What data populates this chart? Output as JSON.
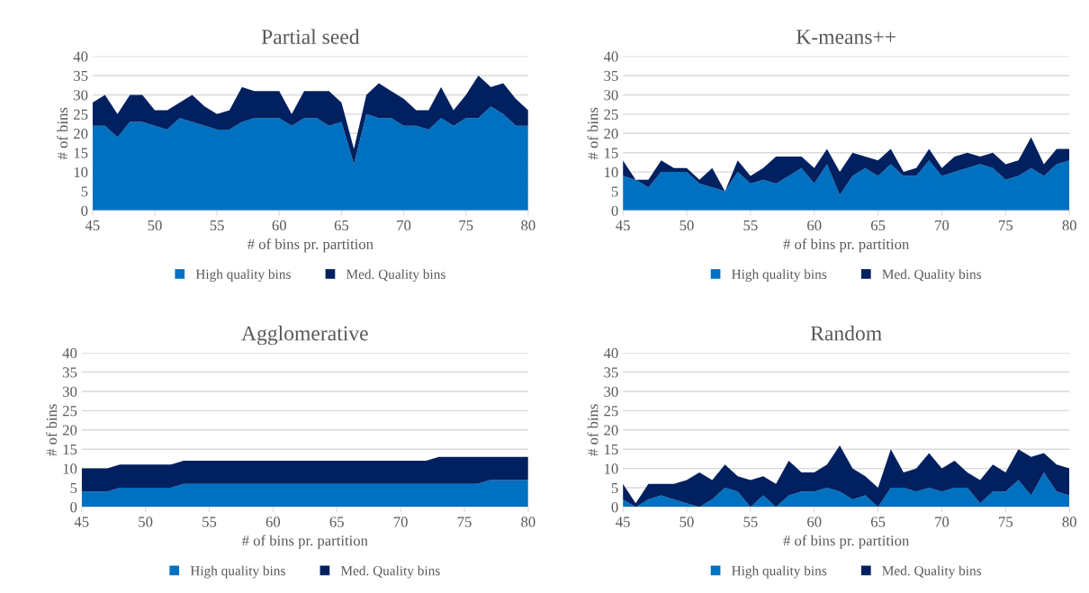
{
  "chart_data": [
    {
      "type": "area",
      "stacked": true,
      "title": "Partial seed",
      "xlabel": "# of bins pr. partition",
      "ylabel": "# of bins",
      "x": [
        45,
        46,
        47,
        48,
        49,
        50,
        51,
        52,
        53,
        54,
        55,
        56,
        57,
        58,
        59,
        60,
        61,
        62,
        63,
        64,
        65,
        66,
        67,
        68,
        69,
        70,
        71,
        72,
        73,
        74,
        75,
        76,
        77,
        78,
        79,
        80
      ],
      "xlim": [
        45,
        80
      ],
      "xticks": [
        45,
        50,
        55,
        60,
        65,
        70,
        75,
        80
      ],
      "ylim": [
        0,
        40
      ],
      "yticks": [
        0,
        5,
        10,
        15,
        20,
        25,
        30,
        35,
        40
      ],
      "grid": "y",
      "legend": "bottom",
      "series": [
        {
          "name": "High quality bins",
          "color": "#0070c0",
          "values": [
            22,
            22,
            19,
            23,
            23,
            22,
            21,
            24,
            23,
            22,
            21,
            21,
            23,
            24,
            24,
            24,
            22,
            24,
            24,
            22,
            23,
            12,
            25,
            24,
            24,
            22,
            22,
            21,
            24,
            22,
            24,
            24,
            27,
            25,
            22,
            22
          ]
        },
        {
          "name": "Med. Quality bins",
          "color": "#002060",
          "values": [
            6,
            8,
            6,
            7,
            7,
            4,
            5,
            4,
            7,
            5,
            4,
            5,
            9,
            7,
            7,
            7,
            3,
            7,
            7,
            9,
            5,
            4,
            5,
            9,
            7,
            7,
            4,
            5,
            8,
            4,
            6,
            11,
            5,
            8,
            7,
            4
          ]
        }
      ]
    },
    {
      "type": "area",
      "stacked": true,
      "title": "K-means++",
      "xlabel": "# of bins pr. partition",
      "ylabel": "# of bins",
      "x": [
        45,
        46,
        47,
        48,
        49,
        50,
        51,
        52,
        53,
        54,
        55,
        56,
        57,
        58,
        59,
        60,
        61,
        62,
        63,
        64,
        65,
        66,
        67,
        68,
        69,
        70,
        71,
        72,
        73,
        74,
        75,
        76,
        77,
        78,
        79,
        80
      ],
      "xlim": [
        45,
        80
      ],
      "xticks": [
        45,
        50,
        55,
        60,
        65,
        70,
        75,
        80
      ],
      "ylim": [
        0,
        40
      ],
      "yticks": [
        0,
        5,
        10,
        15,
        20,
        25,
        30,
        35,
        40
      ],
      "grid": "y",
      "legend": "bottom",
      "series": [
        {
          "name": "High quality bins",
          "color": "#0070c0",
          "values": [
            9,
            8,
            6,
            10,
            10,
            10,
            7,
            6,
            5,
            10,
            7,
            8,
            7,
            9,
            11,
            7,
            12,
            4,
            9,
            11,
            9,
            12,
            9,
            9,
            13,
            9,
            10,
            11,
            12,
            11,
            8,
            9,
            11,
            9,
            12,
            13
          ]
        },
        {
          "name": "Med. Quality bins",
          "color": "#002060",
          "values": [
            4,
            0,
            2,
            3,
            1,
            1,
            1,
            5,
            0,
            3,
            2,
            3,
            7,
            5,
            3,
            4,
            4,
            6,
            6,
            3,
            4,
            4,
            1,
            2,
            3,
            2,
            4,
            4,
            2,
            4,
            4,
            4,
            8,
            3,
            4,
            3
          ]
        }
      ]
    },
    {
      "type": "area",
      "stacked": true,
      "title": "Agglomerative",
      "xlabel": "# of bins pr. partition",
      "ylabel": "# of bins",
      "x": [
        45,
        46,
        47,
        48,
        49,
        50,
        51,
        52,
        53,
        54,
        55,
        56,
        57,
        58,
        59,
        60,
        61,
        62,
        63,
        64,
        65,
        66,
        67,
        68,
        69,
        70,
        71,
        72,
        73,
        74,
        75,
        76,
        77,
        78,
        79,
        80
      ],
      "xlim": [
        45,
        80
      ],
      "xticks": [
        45,
        50,
        55,
        60,
        65,
        70,
        75,
        80
      ],
      "ylim": [
        0,
        40
      ],
      "yticks": [
        0,
        5,
        10,
        15,
        20,
        25,
        30,
        35,
        40
      ],
      "grid": "y",
      "legend": "bottom",
      "series": [
        {
          "name": "High quality bins",
          "color": "#0070c0",
          "values": [
            4,
            4,
            4,
            5,
            5,
            5,
            5,
            5,
            6,
            6,
            6,
            6,
            6,
            6,
            6,
            6,
            6,
            6,
            6,
            6,
            6,
            6,
            6,
            6,
            6,
            6,
            6,
            6,
            6,
            6,
            6,
            6,
            7,
            7,
            7,
            7
          ]
        },
        {
          "name": "Med. Quality bins",
          "color": "#002060",
          "values": [
            6,
            6,
            6,
            6,
            6,
            6,
            6,
            6,
            6,
            6,
            6,
            6,
            6,
            6,
            6,
            6,
            6,
            6,
            6,
            6,
            6,
            6,
            6,
            6,
            6,
            6,
            6,
            6,
            7,
            7,
            7,
            7,
            6,
            6,
            6,
            6
          ]
        }
      ]
    },
    {
      "type": "area",
      "stacked": true,
      "title": "Random",
      "xlabel": "# of bins pr. partition",
      "ylabel": "# of bins",
      "x": [
        45,
        46,
        47,
        48,
        49,
        50,
        51,
        52,
        53,
        54,
        55,
        56,
        57,
        58,
        59,
        60,
        61,
        62,
        63,
        64,
        65,
        66,
        67,
        68,
        69,
        70,
        71,
        72,
        73,
        74,
        75,
        76,
        77,
        78,
        79,
        80
      ],
      "xlim": [
        45,
        80
      ],
      "xticks": [
        45,
        50,
        55,
        60,
        65,
        70,
        75,
        80
      ],
      "ylim": [
        0,
        40
      ],
      "yticks": [
        0,
        5,
        10,
        15,
        20,
        25,
        30,
        35,
        40
      ],
      "grid": "y",
      "legend": "bottom",
      "series": [
        {
          "name": "High quality bins",
          "color": "#0070c0",
          "values": [
            2,
            0,
            2,
            3,
            2,
            1,
            0,
            2,
            5,
            4,
            0,
            3,
            0,
            3,
            4,
            4,
            5,
            4,
            2,
            3,
            0,
            5,
            5,
            4,
            5,
            4,
            5,
            5,
            1,
            4,
            4,
            7,
            3,
            9,
            4,
            3
          ]
        },
        {
          "name": "Med. Quality bins",
          "color": "#002060",
          "values": [
            4,
            1,
            4,
            3,
            4,
            6,
            9,
            5,
            6,
            4,
            7,
            5,
            6,
            9,
            5,
            5,
            6,
            12,
            8,
            5,
            5,
            10,
            4,
            6,
            9,
            6,
            7,
            4,
            6,
            7,
            5,
            8,
            10,
            5,
            7,
            7
          ]
        }
      ]
    }
  ]
}
